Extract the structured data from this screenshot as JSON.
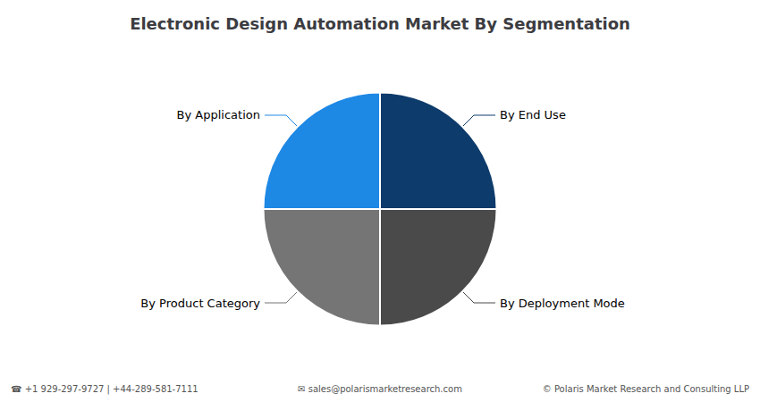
{
  "chart_data": {
    "type": "pie",
    "title": "Electronic Design Automation Market By Segmentation",
    "categories": [
      "By Application",
      "By Product Category",
      "By Deployment Mode",
      "By End Use"
    ],
    "values": [
      25,
      25,
      25,
      25
    ],
    "colors": [
      "#1E88E5",
      "#757575",
      "#4A4A4A",
      "#0D3B6B"
    ],
    "annotations": [
      "☎ +1 929-297-9727 | +44-289-581-7111",
      "✉ sales@polarismarketresearch.com",
      "© Polaris Market Research and Consulting LLP"
    ]
  }
}
